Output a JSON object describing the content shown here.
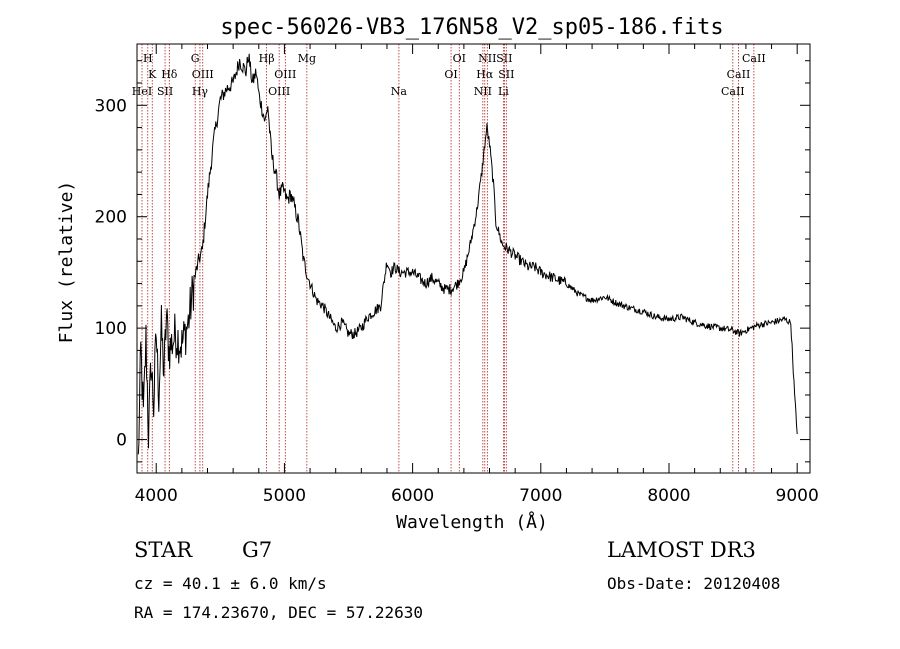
{
  "chart_data": {
    "type": "line",
    "title": "spec-56026-VB3_176N58_V2_sp05-186.fits",
    "xlabel": "Wavelength (Å)",
    "ylabel": "Flux (relative)",
    "xlim": [
      3850,
      9100
    ],
    "ylim": [
      -30,
      355
    ],
    "x_ticks": [
      4000,
      5000,
      6000,
      7000,
      8000,
      9000
    ],
    "y_ticks": [
      0,
      100,
      200,
      300
    ],
    "grid": false,
    "series": [
      {
        "name": "spectrum",
        "x": [
          3860,
          3880,
          3900,
          3920,
          3940,
          3960,
          3980,
          4000,
          4020,
          4040,
          4060,
          4080,
          4100,
          4150,
          4200,
          4250,
          4300,
          4330,
          4360,
          4400,
          4450,
          4500,
          4550,
          4600,
          4650,
          4700,
          4720,
          4750,
          4780,
          4800,
          4850,
          4870,
          4900,
          4930,
          4960,
          4990,
          5020,
          5050,
          5080,
          5110,
          5150,
          5200,
          5250,
          5300,
          5350,
          5400,
          5450,
          5500,
          5550,
          5600,
          5650,
          5700,
          5750,
          5800,
          5830,
          5860,
          5900,
          5950,
          6000,
          6050,
          6100,
          6150,
          6200,
          6250,
          6300,
          6350,
          6400,
          6450,
          6500,
          6540,
          6563,
          6580,
          6600,
          6630,
          6650,
          6700,
          6750,
          6800,
          6850,
          6900,
          6950,
          7000,
          7100,
          7200,
          7300,
          7400,
          7500,
          7600,
          7700,
          7800,
          7900,
          8000,
          8100,
          8200,
          8300,
          8400,
          8500,
          8550,
          8600,
          8700,
          8800,
          8900,
          8950,
          8980,
          9000
        ],
        "y": [
          -20,
          80,
          20,
          90,
          5,
          70,
          30,
          95,
          40,
          100,
          60,
          110,
          80,
          95,
          85,
          105,
          145,
          160,
          170,
          220,
          270,
          305,
          315,
          320,
          340,
          330,
          345,
          320,
          330,
          310,
          285,
          300,
          255,
          240,
          220,
          225,
          215,
          220,
          208,
          195,
          160,
          140,
          125,
          120,
          110,
          100,
          105,
          95,
          95,
          100,
          110,
          115,
          120,
          160,
          150,
          155,
          150,
          150,
          150,
          145,
          140,
          145,
          140,
          135,
          135,
          140,
          150,
          175,
          205,
          240,
          265,
          280,
          265,
          230,
          195,
          175,
          170,
          165,
          160,
          155,
          155,
          150,
          145,
          140,
          130,
          125,
          128,
          122,
          118,
          115,
          110,
          108,
          110,
          105,
          102,
          100,
          98,
          95,
          98,
          103,
          105,
          108,
          105,
          40,
          5
        ]
      }
    ],
    "line_markers": [
      {
        "label": "H",
        "x": 3934,
        "row": 0
      },
      {
        "label": "K",
        "x": 3969,
        "row": 1
      },
      {
        "label": "HeI",
        "x": 3889,
        "row": 2
      },
      {
        "label": "SII",
        "x": 4069,
        "row": 2
      },
      {
        "label": "Hδ",
        "x": 4102,
        "row": 1
      },
      {
        "label": "G",
        "x": 4304,
        "row": 0
      },
      {
        "label": "OIII",
        "x": 4363,
        "row": 1
      },
      {
        "label": "Hγ",
        "x": 4341,
        "row": 2
      },
      {
        "label": "Hβ",
        "x": 4861,
        "row": 0
      },
      {
        "label": "OIII",
        "x": 5007,
        "row": 1
      },
      {
        "label": "OIII",
        "x": 4959,
        "row": 2
      },
      {
        "label": "Mg",
        "x": 5175,
        "row": 0
      },
      {
        "label": "Na",
        "x": 5893,
        "row": 2
      },
      {
        "label": "OI",
        "x": 6364,
        "row": 0
      },
      {
        "label": "OI",
        "x": 6300,
        "row": 1
      },
      {
        "label": "NII",
        "x": 6583,
        "row": 0
      },
      {
        "label": "SII",
        "x": 6716,
        "row": 0
      },
      {
        "label": "Hα",
        "x": 6563,
        "row": 1
      },
      {
        "label": "SII",
        "x": 6731,
        "row": 1
      },
      {
        "label": "NII",
        "x": 6548,
        "row": 2
      },
      {
        "label": "Li",
        "x": 6708,
        "row": 2
      },
      {
        "label": "CaII",
        "x": 8662,
        "row": 0
      },
      {
        "label": "CaII",
        "x": 8542,
        "row": 1
      },
      {
        "label": "CaII",
        "x": 8498,
        "row": 2
      }
    ],
    "colors": {
      "spectrum": "#000000",
      "markers": "#b22222",
      "axes": "#000000"
    }
  },
  "info": {
    "class_label": "STAR",
    "subclass": "G7",
    "survey": "LAMOST DR3",
    "cz_text": "cz = 40.1 ± 6.0 km/s",
    "obs_date_text": "Obs-Date: 20120408",
    "coords_text": "RA = 174.23670, DEC =  57.22630"
  }
}
